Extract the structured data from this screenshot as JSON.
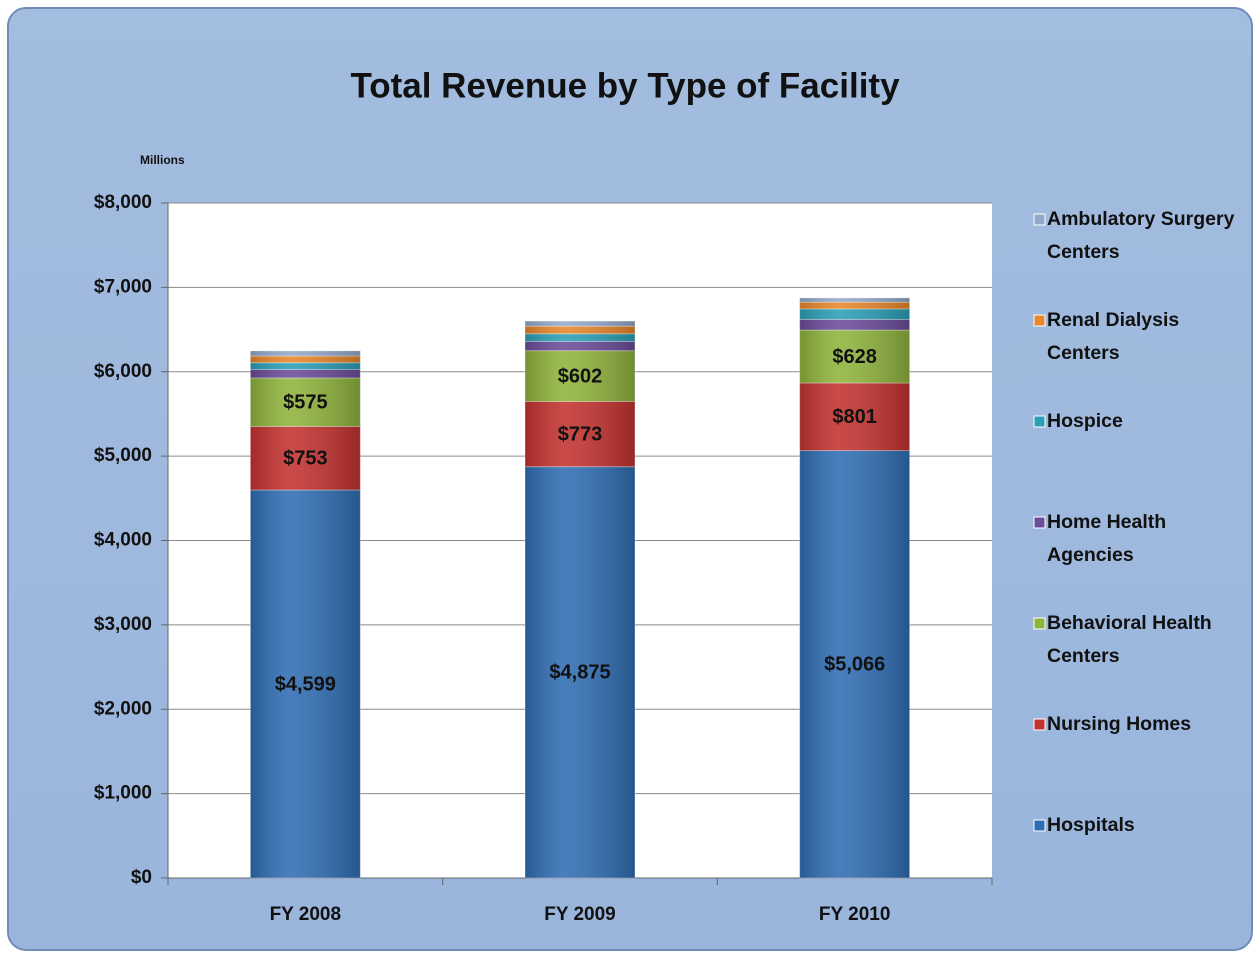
{
  "chart_data": {
    "type": "stacked_bar",
    "title": "Total Revenue by Type of Facility",
    "y_unit_label": "Millions",
    "categories": [
      "FY 2008",
      "FY 2009",
      "FY 2010"
    ],
    "series": [
      {
        "name": "Hospitals",
        "color": "#2f6db3",
        "values": [
          4599,
          4875,
          5066
        ],
        "value_labels": [
          "$4,599",
          "$4,875",
          "$5,066"
        ]
      },
      {
        "name": "Nursing Homes",
        "color": "#c3322f",
        "values": [
          753,
          773,
          801
        ],
        "value_labels": [
          "$753",
          "$773",
          "$801"
        ]
      },
      {
        "name": "Behavioral Health Centers",
        "color": "#8fb43c",
        "values": [
          575,
          602,
          628
        ],
        "value_labels": [
          "$575",
          "$602",
          "$628"
        ]
      },
      {
        "name": "Home Health Agencies",
        "color": "#6b4c9a",
        "values": [
          100,
          110,
          125
        ]
      },
      {
        "name": "Hospice",
        "color": "#2b9fb6",
        "values": [
          80,
          90,
          125
        ]
      },
      {
        "name": "Renal Dialysis Centers",
        "color": "#e8872b",
        "values": [
          80,
          90,
          80
        ]
      },
      {
        "name": "Ambulatory Surgery Centers",
        "color": "#93a9cc",
        "values": [
          60,
          60,
          50
        ]
      }
    ],
    "ylim": [
      0,
      8000
    ],
    "yticks": [
      {
        "value": 0,
        "label": "$0"
      },
      {
        "value": 1000,
        "label": "$1,000"
      },
      {
        "value": 2000,
        "label": "$2,000"
      },
      {
        "value": 3000,
        "label": "$3,000"
      },
      {
        "value": 4000,
        "label": "$4,000"
      },
      {
        "value": 5000,
        "label": "$5,000"
      },
      {
        "value": 6000,
        "label": "$6,000"
      },
      {
        "value": 7000,
        "label": "$7,000"
      },
      {
        "value": 8000,
        "label": "$8,000"
      }
    ],
    "grid": true,
    "legend": "right"
  }
}
